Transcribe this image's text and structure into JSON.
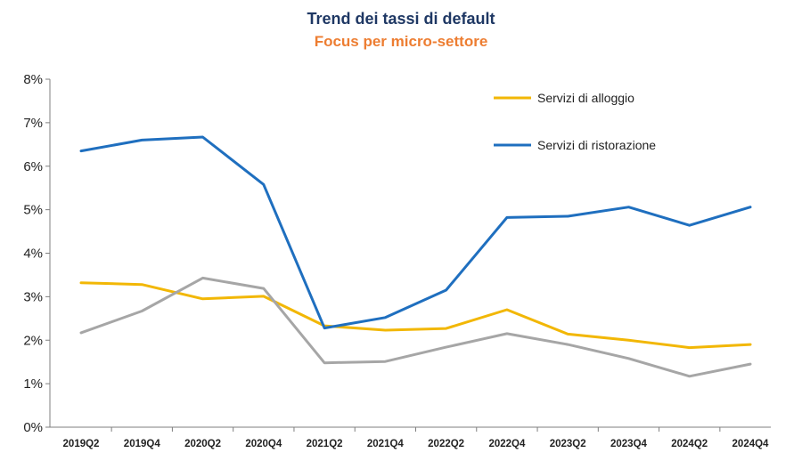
{
  "title": "Trend dei tassi di default",
  "subtitle": "Focus per micro-settore",
  "chart_data": {
    "type": "line",
    "title": "Trend dei tassi di default",
    "subtitle": "Focus per micro-settore",
    "xlabel": "",
    "ylabel": "",
    "ylim": [
      0,
      8
    ],
    "y_ticks": [
      "0%",
      "1%",
      "2%",
      "3%",
      "4%",
      "5%",
      "6%",
      "7%",
      "8%"
    ],
    "x": [
      "2019Q2",
      "2019Q4",
      "2020Q2",
      "2020Q4",
      "2021Q2",
      "2021Q4",
      "2022Q2",
      "2022Q4",
      "2023Q2",
      "2023Q4",
      "2024Q2",
      "2024Q4"
    ],
    "grid": false,
    "legend_position": "top-right",
    "series": [
      {
        "name": "Servizi di alloggio",
        "color": "#f2b705",
        "values": [
          3.32,
          3.28,
          2.95,
          3.01,
          2.33,
          2.23,
          2.27,
          2.7,
          2.14,
          2.0,
          1.83,
          1.9
        ]
      },
      {
        "name": "Servizi di ristorazione",
        "color": "#1f6fbf",
        "values": [
          6.35,
          6.6,
          6.67,
          5.58,
          2.28,
          2.52,
          3.15,
          4.82,
          4.85,
          5.06,
          4.64,
          5.06
        ]
      },
      {
        "name": "",
        "color": "#a6a6a6",
        "values": [
          2.17,
          2.67,
          3.43,
          3.19,
          1.48,
          1.51,
          1.84,
          2.15,
          1.9,
          1.58,
          1.17,
          1.45
        ]
      }
    ]
  }
}
